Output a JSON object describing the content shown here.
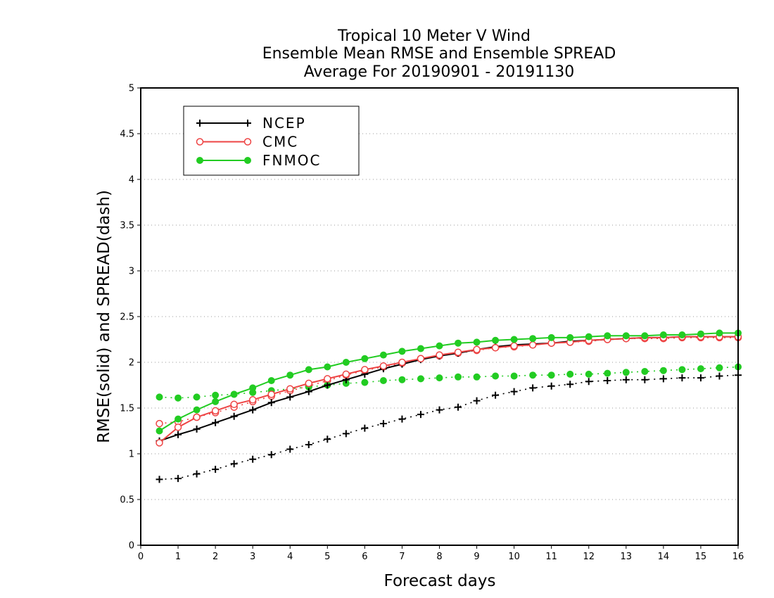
{
  "chart_data": {
    "type": "line",
    "title": [
      "Tropical 10 Meter V Wind",
      "Ensemble Mean RMSE and Ensemble SPREAD",
      "Average For 20190901 - 20191130"
    ],
    "xlabel": "Forecast days",
    "ylabel": "RMSE(solid) and SPREAD(dash)",
    "xlim": [
      0,
      16
    ],
    "ylim": [
      0,
      5
    ],
    "xticks": [
      "0",
      "1",
      "2",
      "3",
      "4",
      "5",
      "6",
      "7",
      "8",
      "9",
      "10",
      "11",
      "12",
      "13",
      "14",
      "15",
      "16"
    ],
    "yticks": [
      "0",
      "0.5",
      "1",
      "1.5",
      "2",
      "2.5",
      "3",
      "3.5",
      "4",
      "4.5",
      "5"
    ],
    "grid": true,
    "legend_position": "top-left",
    "x": [
      0.5,
      1,
      1.5,
      2,
      2.5,
      3,
      3.5,
      4,
      4.5,
      5,
      5.5,
      6,
      6.5,
      7,
      7.5,
      8,
      8.5,
      9,
      9.5,
      10,
      10.5,
      11,
      11.5,
      12,
      12.5,
      13,
      13.5,
      14,
      14.5,
      15,
      15.5,
      16
    ],
    "series": [
      {
        "name": "NCEP",
        "metric": "RMSE",
        "style": "solid",
        "marker": "plus",
        "color": "#000000",
        "values": [
          1.14,
          1.21,
          1.27,
          1.34,
          1.41,
          1.48,
          1.56,
          1.62,
          1.68,
          1.75,
          1.81,
          1.87,
          1.93,
          1.98,
          2.03,
          2.07,
          2.1,
          2.14,
          2.17,
          2.19,
          2.2,
          2.21,
          2.23,
          2.24,
          2.25,
          2.26,
          2.27,
          2.27,
          2.28,
          2.28,
          2.28,
          2.28
        ]
      },
      {
        "name": "NCEP",
        "metric": "SPREAD",
        "style": "dash",
        "marker": "plus",
        "color": "#000000",
        "values": [
          0.72,
          0.73,
          0.78,
          0.83,
          0.89,
          0.94,
          0.99,
          1.05,
          1.1,
          1.16,
          1.22,
          1.28,
          1.33,
          1.38,
          1.43,
          1.48,
          1.51,
          1.58,
          1.64,
          1.68,
          1.72,
          1.74,
          1.76,
          1.79,
          1.8,
          1.81,
          1.81,
          1.82,
          1.83,
          1.83,
          1.85,
          1.86
        ]
      },
      {
        "name": "CMC",
        "metric": "RMSE",
        "style": "solid",
        "marker": "open-circle",
        "color": "#ee4444",
        "values": [
          1.12,
          1.29,
          1.4,
          1.47,
          1.54,
          1.59,
          1.65,
          1.71,
          1.77,
          1.82,
          1.87,
          1.92,
          1.96,
          2.0,
          2.04,
          2.08,
          2.11,
          2.14,
          2.16,
          2.18,
          2.19,
          2.21,
          2.22,
          2.24,
          2.25,
          2.26,
          2.27,
          2.27,
          2.28,
          2.28,
          2.28,
          2.28
        ]
      },
      {
        "name": "CMC",
        "metric": "SPREAD",
        "style": "dash",
        "marker": "open-circle",
        "color": "#ee4444",
        "values": [
          1.33,
          1.35,
          1.4,
          1.45,
          1.51,
          1.57,
          1.63,
          1.69,
          1.74,
          1.8,
          1.86,
          1.91,
          1.95,
          1.99,
          2.04,
          2.07,
          2.1,
          2.13,
          2.16,
          2.17,
          2.19,
          2.21,
          2.22,
          2.23,
          2.25,
          2.26,
          2.26,
          2.26,
          2.27,
          2.27,
          2.27,
          2.27
        ]
      },
      {
        "name": "FNMOC",
        "metric": "RMSE",
        "style": "solid",
        "marker": "filled-circle",
        "color": "#22cc22",
        "values": [
          1.25,
          1.38,
          1.48,
          1.57,
          1.65,
          1.72,
          1.8,
          1.86,
          1.92,
          1.95,
          2.0,
          2.04,
          2.08,
          2.12,
          2.15,
          2.18,
          2.21,
          2.22,
          2.24,
          2.25,
          2.26,
          2.27,
          2.27,
          2.28,
          2.29,
          2.29,
          2.29,
          2.3,
          2.3,
          2.31,
          2.32,
          2.32
        ]
      },
      {
        "name": "FNMOC",
        "metric": "SPREAD",
        "style": "dash",
        "marker": "filled-circle",
        "color": "#22cc22",
        "values": [
          1.62,
          1.61,
          1.62,
          1.64,
          1.65,
          1.67,
          1.69,
          1.71,
          1.73,
          1.75,
          1.77,
          1.78,
          1.8,
          1.81,
          1.82,
          1.83,
          1.84,
          1.84,
          1.85,
          1.85,
          1.86,
          1.86,
          1.87,
          1.87,
          1.88,
          1.89,
          1.9,
          1.91,
          1.92,
          1.93,
          1.94,
          1.95
        ]
      }
    ]
  }
}
